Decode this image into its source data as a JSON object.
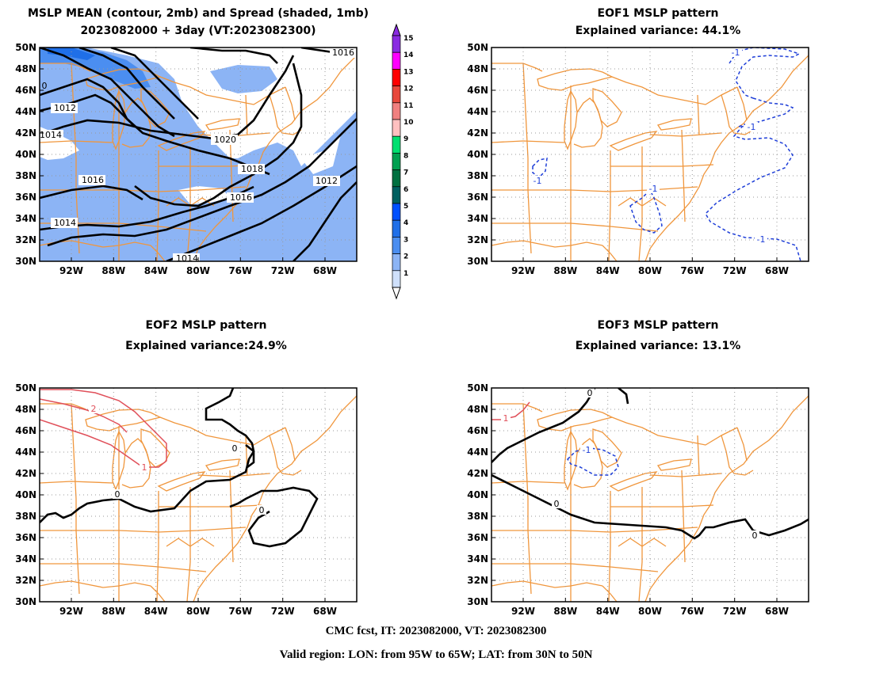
{
  "panels": [
    {
      "title_line1": "MSLP MEAN (contour, 2mb) and Spread (shaded, 1mb)",
      "title_line2": "2023082000 + 3day (VT:2023082300)",
      "contour_labels": [
        "1016",
        "1012",
        "1014",
        "1020",
        "1018",
        "1016",
        "1016",
        "1012",
        "1014",
        "1014",
        "0"
      ]
    },
    {
      "title_line1": "EOF1 MSLP pattern",
      "title_line2": "Explained variance: 44.1%",
      "contour_labels": [
        "-1",
        "-1",
        "-1",
        "-1",
        "-1"
      ]
    },
    {
      "title_line1": "EOF2 MSLP pattern",
      "title_line2": "Explained variance:24.9%",
      "contour_labels": [
        "2",
        "1",
        "0",
        "0",
        "0"
      ]
    },
    {
      "title_line1": "EOF3 MSLP pattern",
      "title_line2": "Explained variance: 13.1%",
      "contour_labels": [
        "1",
        "0",
        "-1",
        "0",
        "0"
      ]
    }
  ],
  "lat_labels": [
    "50N",
    "48N",
    "46N",
    "44N",
    "42N",
    "40N",
    "38N",
    "36N",
    "34N",
    "32N",
    "30N"
  ],
  "lon_labels": [
    "92W",
    "88W",
    "84W",
    "80W",
    "76W",
    "72W",
    "68W"
  ],
  "colorbar": {
    "labels": [
      "15",
      "14",
      "13",
      "12",
      "11",
      "10",
      "9",
      "8",
      "7",
      "6",
      "5",
      "4",
      "3",
      "2",
      "1"
    ],
    "colors": [
      "#8a2be2",
      "#ff00ff",
      "#ff0000",
      "#e8483c",
      "#f08080",
      "#ffc0c0",
      "#00e070",
      "#00a050",
      "#007040",
      "#006060",
      "#0050ff",
      "#1f6fe8",
      "#4b8ef0",
      "#8cb4f5",
      "#cfe0fb"
    ]
  },
  "colors": {
    "coast": "#f0963c",
    "spread": "#8cb4f5",
    "spread_dark": "#4b8ef0",
    "negative": "#1f3fd8",
    "positive": "#e0505a",
    "grid": "#999999"
  },
  "footer": {
    "line1": "CMC fcst, IT: 2023082000, VT: 2023082300",
    "line2": "Valid region: LON: from 95W to 65W; LAT: from 30N to 50N"
  }
}
